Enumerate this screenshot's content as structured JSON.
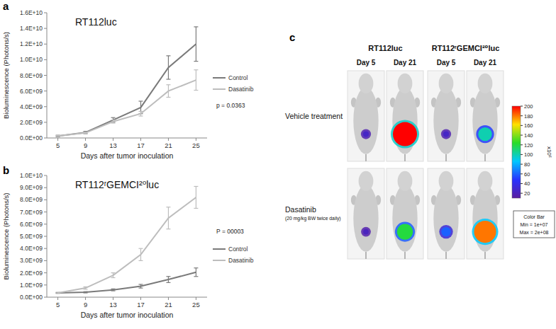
{
  "chart_data": [
    {
      "type": "line",
      "title": "RT112luc",
      "x_label": "Days after tumor inoculation",
      "y_label": "Bioluminescence (Photons/s)",
      "x": [
        5,
        9,
        13,
        17,
        21,
        25
      ],
      "xlim": [
        3.4,
        26.6
      ],
      "xticks": [
        5,
        9,
        13,
        17,
        21,
        25
      ],
      "ylim": [
        0,
        16000000000
      ],
      "yticks": [
        {
          "value": 0,
          "label": "0.0E+00"
        },
        {
          "value": 2000000000,
          "label": "2.0E+09"
        },
        {
          "value": 4000000000,
          "label": "4.0E+09"
        },
        {
          "value": 6000000000,
          "label": "6.0E+09"
        },
        {
          "value": 8000000000,
          "label": "8.0E+09"
        },
        {
          "value": 10000000000,
          "label": "1.0E+10"
        },
        {
          "value": 12000000000,
          "label": "1.2E+10"
        },
        {
          "value": 14000000000,
          "label": "1.4E+10"
        },
        {
          "value": 16000000000,
          "label": "1.6E+10"
        }
      ],
      "grid": false,
      "legend": "right",
      "annotations": [
        "p = 0.0363"
      ],
      "series": [
        {
          "name": "Control",
          "color": "#7a7a7a",
          "values": [
            250000000,
            700000000,
            2300000000,
            3900000000,
            9000000000,
            12000000000
          ],
          "errors": [
            100000000,
            150000000,
            300000000,
            800000000,
            1500000000,
            2200000000
          ]
        },
        {
          "name": "Dasatinib",
          "color": "#bdbdbd",
          "values": [
            250000000,
            650000000,
            2100000000,
            3100000000,
            6000000000,
            7400000000
          ],
          "errors": [
            50000000,
            100000000,
            200000000,
            300000000,
            800000000,
            1300000000
          ]
        }
      ]
    },
    {
      "type": "line",
      "title": "RT112ʳGEMCI²⁰luc",
      "x_label": "Days after tumor inoculation",
      "y_label": "Bioluminescence (Photons/s)",
      "x": [
        5,
        9,
        13,
        17,
        21,
        25
      ],
      "xlim": [
        3.4,
        26.6
      ],
      "xticks": [
        5,
        9,
        13,
        17,
        21,
        25
      ],
      "ylim": [
        0,
        10000000000
      ],
      "yticks": [
        {
          "value": 0,
          "label": "0.0E+00"
        },
        {
          "value": 1000000000,
          "label": "1.0E+09"
        },
        {
          "value": 2000000000,
          "label": "2.0E+09"
        },
        {
          "value": 3000000000,
          "label": "3.0E+09"
        },
        {
          "value": 4000000000,
          "label": "4.0E+09"
        },
        {
          "value": 5000000000,
          "label": "5.0E+09"
        },
        {
          "value": 6000000000,
          "label": "6.0E+09"
        },
        {
          "value": 7000000000,
          "label": "7.0E+09"
        },
        {
          "value": 8000000000,
          "label": "8.0E+09"
        },
        {
          "value": 9000000000,
          "label": "9.0E+09"
        },
        {
          "value": 10000000000,
          "label": "1.0E+10"
        }
      ],
      "grid": false,
      "legend": "right",
      "annotations": [
        "P = 00003"
      ],
      "series": [
        {
          "name": "Control",
          "color": "#7a7a7a",
          "values": [
            350000000,
            400000000,
            600000000,
            900000000,
            1450000000,
            2050000000
          ],
          "errors": [
            30000000,
            50000000,
            80000000,
            150000000,
            250000000,
            350000000
          ]
        },
        {
          "name": "Dasatinib",
          "color": "#bdbdbd",
          "values": [
            350000000,
            750000000,
            1800000000,
            3500000000,
            6500000000,
            8200000000
          ],
          "errors": [
            50000000,
            100000000,
            200000000,
            500000000,
            900000000,
            900000000
          ]
        }
      ]
    }
  ],
  "panel_labels": [
    "a",
    "b",
    "c"
  ],
  "imaging": {
    "columns": [
      {
        "label": "RT112luc",
        "days": [
          "Day 5",
          "Day 21"
        ]
      },
      {
        "label": "RT112ʳGEMCI²⁰luc",
        "days": [
          "Day 5",
          "Day 21"
        ]
      }
    ],
    "rows": [
      {
        "label": "Vehicle treatment",
        "intensity": [
          25,
          200,
          25,
          100
        ]
      },
      {
        "label": "Dasatinib",
        "note": "(20 mg/kg BW twice daily)",
        "intensity": [
          22,
          120,
          60,
          180
        ]
      }
    ],
    "color_bar": {
      "range": [
        10,
        200
      ],
      "ticks": [
        20,
        40,
        60,
        80,
        100,
        120,
        140,
        160,
        180,
        200
      ],
      "unit_label": "x10⁶",
      "title": "Color Bar",
      "min_label": "Min = 1e+07",
      "max_label": "Max = 2e+08"
    }
  }
}
